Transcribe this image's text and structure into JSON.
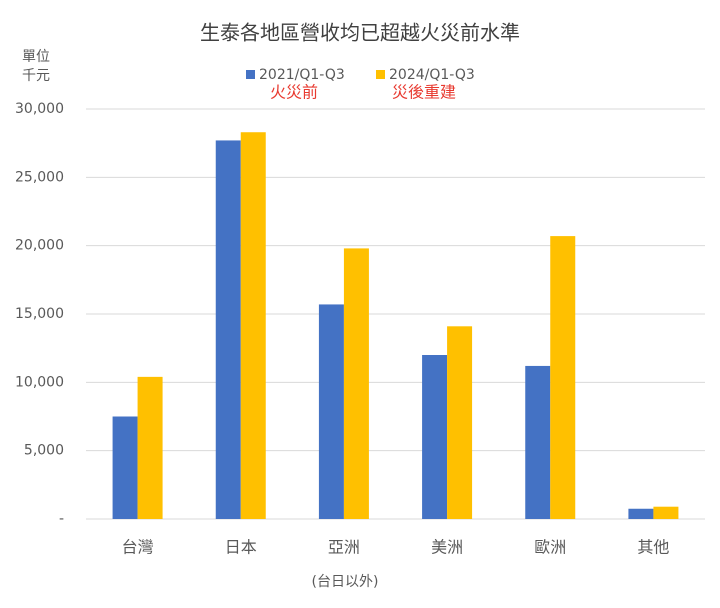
{
  "chart_data": {
    "type": "bar",
    "title": "生泰各地區營收均已超越火災前水準",
    "y_label_lines": [
      "單位",
      "千元"
    ],
    "x_label": "(台日以外)",
    "categories": [
      "台灣",
      "日本",
      "亞洲",
      "美洲",
      "歐洲",
      "其他"
    ],
    "series": [
      {
        "name": "2021/Q1-Q3",
        "note": "火災前",
        "color": "#4472c4",
        "values": [
          7500,
          27700,
          15700,
          12000,
          11200,
          750
        ]
      },
      {
        "name": "2024/Q1-Q3",
        "note": "災後重建",
        "color": "#ffc000",
        "values": [
          10400,
          28300,
          19800,
          14100,
          20700,
          900
        ]
      }
    ],
    "ylim": [
      0,
      30000
    ],
    "yticks": [
      {
        "value": 0,
        "label": "-"
      },
      {
        "value": 5000,
        "label": "5,000"
      },
      {
        "value": 10000,
        "label": "10,000"
      },
      {
        "value": 15000,
        "label": "15,000"
      },
      {
        "value": 20000,
        "label": "20,000"
      },
      {
        "value": 25000,
        "label": "25,000"
      },
      {
        "value": 30000,
        "label": "30,000"
      }
    ],
    "grid": true
  }
}
